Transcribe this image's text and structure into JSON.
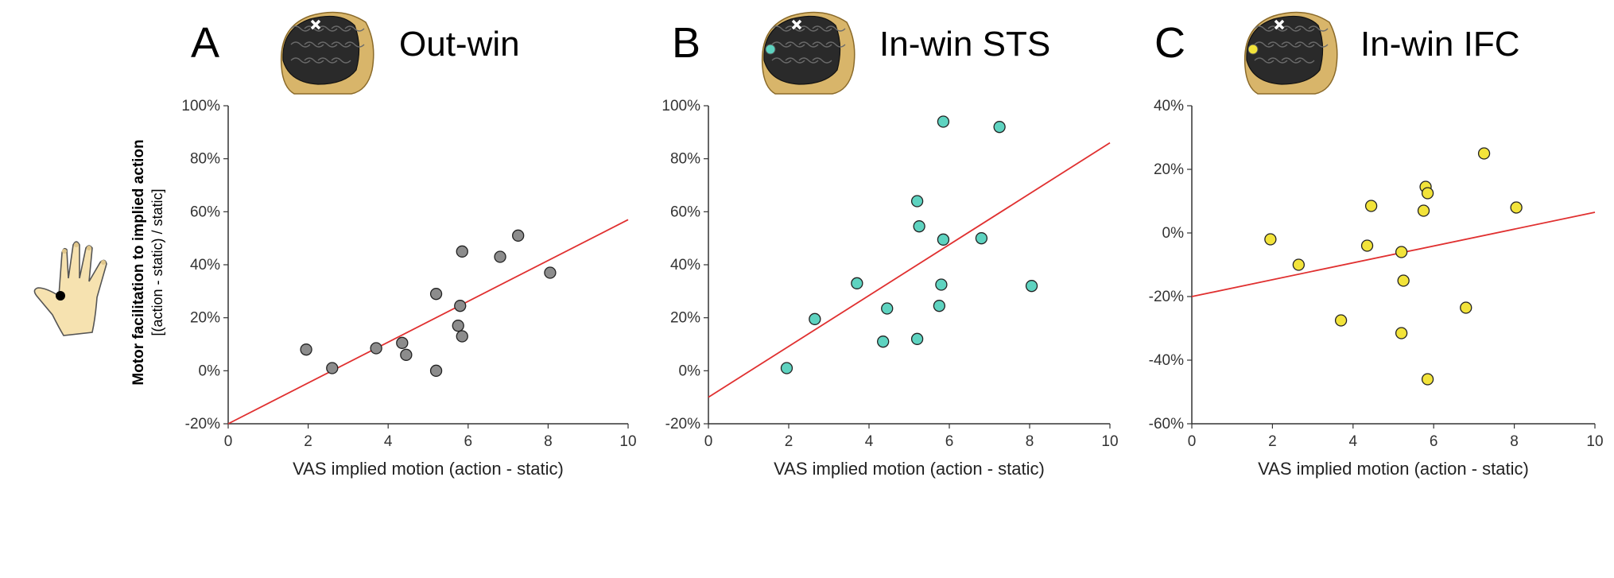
{
  "shared_ylabel_line1": "Motor facilitation to implied action",
  "shared_ylabel_line2": "[(action - static) / static]",
  "colors": {
    "fit_line": "#e03030",
    "axis": "#333333"
  },
  "chart_data": [
    {
      "type": "scatter",
      "panel_letter": "A",
      "title": "Out-win",
      "xlabel": "VAS implied motion (action - static)",
      "ylabel": "",
      "xlim": [
        0,
        10
      ],
      "ylim": [
        -20,
        100
      ],
      "x_ticks": [
        0,
        2,
        4,
        6,
        8,
        10
      ],
      "y_ticks": [
        -20,
        0,
        20,
        40,
        60,
        80,
        100
      ],
      "y_tick_labels": [
        "-20%",
        "0%",
        "20%",
        "40%",
        "60%",
        "80%",
        "100%"
      ],
      "marker_color": "#8c8c8c",
      "fit_line": {
        "x": [
          0,
          10
        ],
        "y": [
          -20,
          57
        ]
      },
      "points": [
        {
          "x": 1.95,
          "y": 8
        },
        {
          "x": 2.6,
          "y": 1
        },
        {
          "x": 3.7,
          "y": 8.5
        },
        {
          "x": 4.35,
          "y": 10.5
        },
        {
          "x": 4.45,
          "y": 6
        },
        {
          "x": 5.2,
          "y": 29
        },
        {
          "x": 5.2,
          "y": 0
        },
        {
          "x": 5.75,
          "y": 17
        },
        {
          "x": 5.8,
          "y": 24.5
        },
        {
          "x": 5.85,
          "y": 13
        },
        {
          "x": 5.85,
          "y": 45
        },
        {
          "x": 6.8,
          "y": 43
        },
        {
          "x": 7.25,
          "y": 51
        },
        {
          "x": 8.05,
          "y": 37
        }
      ],
      "grid": false,
      "legend": "none"
    },
    {
      "type": "scatter",
      "panel_letter": "B",
      "title": "In-win STS",
      "xlabel": "VAS implied motion (action - static)",
      "ylabel": "",
      "xlim": [
        0,
        10
      ],
      "ylim": [
        -20,
        100
      ],
      "x_ticks": [
        0,
        2,
        4,
        6,
        8,
        10
      ],
      "y_ticks": [
        -20,
        0,
        20,
        40,
        60,
        80,
        100
      ],
      "y_tick_labels": [
        "-20%",
        "0%",
        "20%",
        "40%",
        "60%",
        "80%",
        "100%"
      ],
      "marker_color": "#5ed3c0",
      "fit_line": {
        "x": [
          0,
          10
        ],
        "y": [
          -10,
          86
        ]
      },
      "points": [
        {
          "x": 1.95,
          "y": 1
        },
        {
          "x": 2.65,
          "y": 19.5
        },
        {
          "x": 3.7,
          "y": 33
        },
        {
          "x": 4.35,
          "y": 11
        },
        {
          "x": 4.45,
          "y": 23.5
        },
        {
          "x": 5.2,
          "y": 12
        },
        {
          "x": 5.2,
          "y": 64
        },
        {
          "x": 5.25,
          "y": 54.5
        },
        {
          "x": 5.75,
          "y": 24.5
        },
        {
          "x": 5.8,
          "y": 32.5
        },
        {
          "x": 5.85,
          "y": 49.5
        },
        {
          "x": 5.85,
          "y": 94
        },
        {
          "x": 6.8,
          "y": 50
        },
        {
          "x": 7.25,
          "y": 92
        },
        {
          "x": 8.05,
          "y": 32
        }
      ],
      "grid": false,
      "legend": "none"
    },
    {
      "type": "scatter",
      "panel_letter": "C",
      "title": "In-win IFC",
      "xlabel": "VAS implied motion (action - static)",
      "ylabel": "",
      "xlim": [
        0,
        10
      ],
      "ylim": [
        -60,
        40
      ],
      "x_ticks": [
        0,
        2,
        4,
        6,
        8,
        10
      ],
      "y_ticks": [
        -60,
        -40,
        -20,
        0,
        20,
        40
      ],
      "y_tick_labels": [
        "-60%",
        "-40%",
        "-20%",
        "0%",
        "20%",
        "40%"
      ],
      "marker_color": "#f2e33a",
      "fit_line": {
        "x": [
          0,
          10
        ],
        "y": [
          -20,
          6.5
        ]
      },
      "points": [
        {
          "x": 1.95,
          "y": -2
        },
        {
          "x": 2.65,
          "y": -10
        },
        {
          "x": 3.7,
          "y": -27.5
        },
        {
          "x": 4.35,
          "y": -4
        },
        {
          "x": 4.45,
          "y": 8.5
        },
        {
          "x": 5.2,
          "y": -6
        },
        {
          "x": 5.2,
          "y": -31.5
        },
        {
          "x": 5.25,
          "y": -15
        },
        {
          "x": 5.75,
          "y": 7
        },
        {
          "x": 5.8,
          "y": 14.5
        },
        {
          "x": 5.85,
          "y": 12.5
        },
        {
          "x": 5.85,
          "y": -46
        },
        {
          "x": 6.8,
          "y": -23.5
        },
        {
          "x": 7.25,
          "y": 25
        },
        {
          "x": 8.05,
          "y": 8
        }
      ],
      "grid": false,
      "legend": "none"
    }
  ]
}
